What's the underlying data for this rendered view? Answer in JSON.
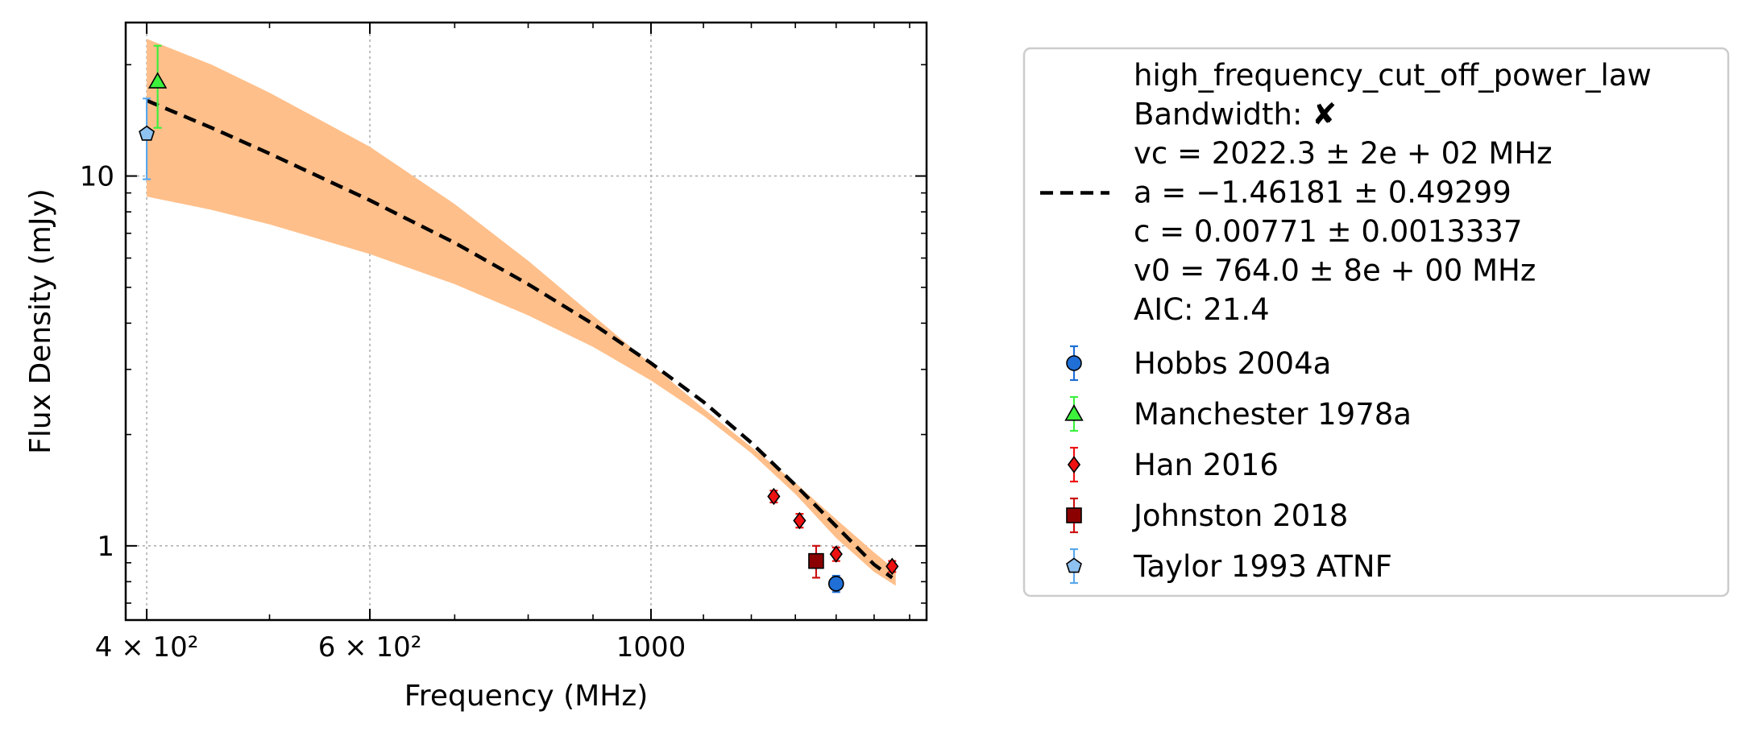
{
  "chart_data": {
    "type": "scatter",
    "xlabel": "Frequency (MHz)",
    "ylabel": "Flux Density (mJy)",
    "x_scale": "log",
    "y_scale": "log",
    "xlim": [
      385,
      1650
    ],
    "ylim": [
      0.63,
      26
    ],
    "grid": true,
    "x_ticks": [
      {
        "value": 400,
        "label": "4 × 10²"
      },
      {
        "value": 600,
        "label": "6 × 10²"
      },
      {
        "value": 1000,
        "label": "1000"
      }
    ],
    "y_ticks": [
      {
        "value": 1,
        "label": "1"
      },
      {
        "value": 10,
        "label": "10"
      }
    ],
    "fit": {
      "label_lines": [
        "high_frequency_cut_off_power_law",
        "Bandwidth: ✘",
        "vc = 2022.3 ± 2e + 02 MHz",
        "a = −1.46181 ± 0.49299",
        "c = 0.00771 ± 0.0013337",
        "v0 = 764.0 ± 8e + 00 MHz",
        "AIC: 21.4"
      ],
      "curve": [
        [
          400,
          16.0
        ],
        [
          450,
          13.5
        ],
        [
          500,
          11.5
        ],
        [
          600,
          8.6
        ],
        [
          700,
          6.6
        ],
        [
          800,
          5.1
        ],
        [
          900,
          3.98
        ],
        [
          1000,
          3.12
        ],
        [
          1100,
          2.45
        ],
        [
          1200,
          1.9
        ],
        [
          1300,
          1.46
        ],
        [
          1400,
          1.13
        ],
        [
          1500,
          0.89
        ],
        [
          1550,
          0.82
        ]
      ],
      "band_upper": [
        [
          400,
          23.5
        ],
        [
          450,
          20.0
        ],
        [
          500,
          16.8
        ],
        [
          600,
          12.0
        ],
        [
          700,
          8.4
        ],
        [
          800,
          5.9
        ],
        [
          900,
          4.2
        ],
        [
          1000,
          3.1
        ],
        [
          1100,
          2.35
        ],
        [
          1200,
          1.85
        ],
        [
          1300,
          1.48
        ],
        [
          1400,
          1.18
        ],
        [
          1500,
          0.96
        ],
        [
          1560,
          0.86
        ]
      ],
      "band_lower": [
        [
          400,
          8.8
        ],
        [
          450,
          8.1
        ],
        [
          500,
          7.4
        ],
        [
          600,
          6.15
        ],
        [
          700,
          5.1
        ],
        [
          800,
          4.2
        ],
        [
          900,
          3.45
        ],
        [
          1000,
          2.8
        ],
        [
          1100,
          2.25
        ],
        [
          1200,
          1.78
        ],
        [
          1300,
          1.38
        ],
        [
          1400,
          1.05
        ],
        [
          1500,
          0.85
        ],
        [
          1560,
          0.78
        ]
      ],
      "band_color": "#ffbf8a",
      "line_color": "#000000"
    },
    "series": [
      {
        "name": "Hobbs 2004a",
        "marker": "circle",
        "color": "#1f6fd6",
        "err_color": "#1f6fd6",
        "points": [
          {
            "x": 1400,
            "y": 0.79,
            "lo": 0.75,
            "hi": 0.83
          }
        ]
      },
      {
        "name": "Manchester 1978a",
        "marker": "triangle",
        "color": "#3cf03c",
        "err_color": "#3cf03c",
        "points": [
          {
            "x": 408,
            "y": 18.0,
            "lo": 13.5,
            "hi": 22.5
          }
        ]
      },
      {
        "name": "Han 2016",
        "marker": "diamond",
        "color": "#ee1111",
        "err_color": "#ee1111",
        "points": [
          {
            "x": 1250,
            "y": 1.36,
            "lo": 1.31,
            "hi": 1.41
          },
          {
            "x": 1310,
            "y": 1.17,
            "lo": 1.12,
            "hi": 1.22
          },
          {
            "x": 1400,
            "y": 0.95,
            "lo": 0.91,
            "hi": 0.99
          },
          {
            "x": 1550,
            "y": 0.88,
            "lo": 0.85,
            "hi": 0.91
          }
        ]
      },
      {
        "name": "Johnston 2018",
        "marker": "square",
        "color": "#8b0000",
        "err_color": "#cc1111",
        "points": [
          {
            "x": 1350,
            "y": 0.91,
            "lo": 0.82,
            "hi": 1.0
          }
        ]
      },
      {
        "name": "Taylor 1993 ATNF",
        "marker": "pentagon",
        "color": "#8ec2f0",
        "err_color": "#5aa8ec",
        "points": [
          {
            "x": 400,
            "y": 13.0,
            "lo": 9.8,
            "hi": 16.2
          }
        ]
      }
    ]
  }
}
